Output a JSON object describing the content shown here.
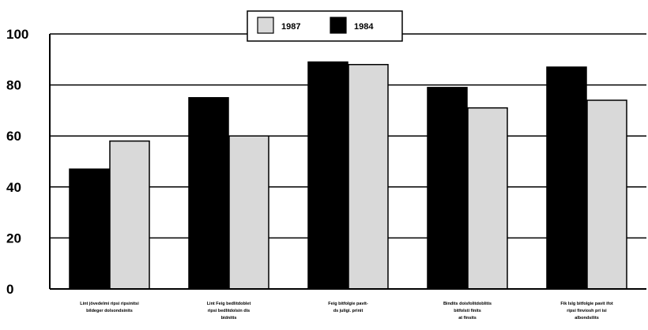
{
  "chart_data": {
    "type": "bar",
    "categories": [
      [
        "Lint jövedelmi ripsi ripsinitsi",
        "bildeger dolsondsinits"
      ],
      [
        "Lint Feig bedlitdoblet",
        "ripsi bedlitdolsin dis",
        "bidnitts"
      ],
      [
        "Feig bitfolgie pavit-",
        "ds juligi. prinit"
      ],
      [
        "Bindits doisfolitdoblitis",
        "bitfolsti finits",
        "at finsits"
      ],
      [
        "Fik Islg bitfolgie pavit ifot",
        "ripsi finviosh pri isi",
        "albondsilits"
      ]
    ],
    "series": [
      {
        "name": "1984",
        "color": "#000000",
        "values": [
          47,
          75,
          89,
          79,
          87
        ]
      },
      {
        "name": "1987",
        "color": "#d9d9d9",
        "values": [
          58,
          60,
          88,
          71,
          74
        ]
      }
    ],
    "legend": {
      "position": "top-center",
      "order": [
        "1987",
        "1984"
      ]
    },
    "y_ticks": [
      0,
      20,
      40,
      60,
      80,
      100
    ],
    "ylim": [
      0,
      100
    ],
    "grid": true,
    "title": "",
    "xlabel": "",
    "ylabel": ""
  }
}
